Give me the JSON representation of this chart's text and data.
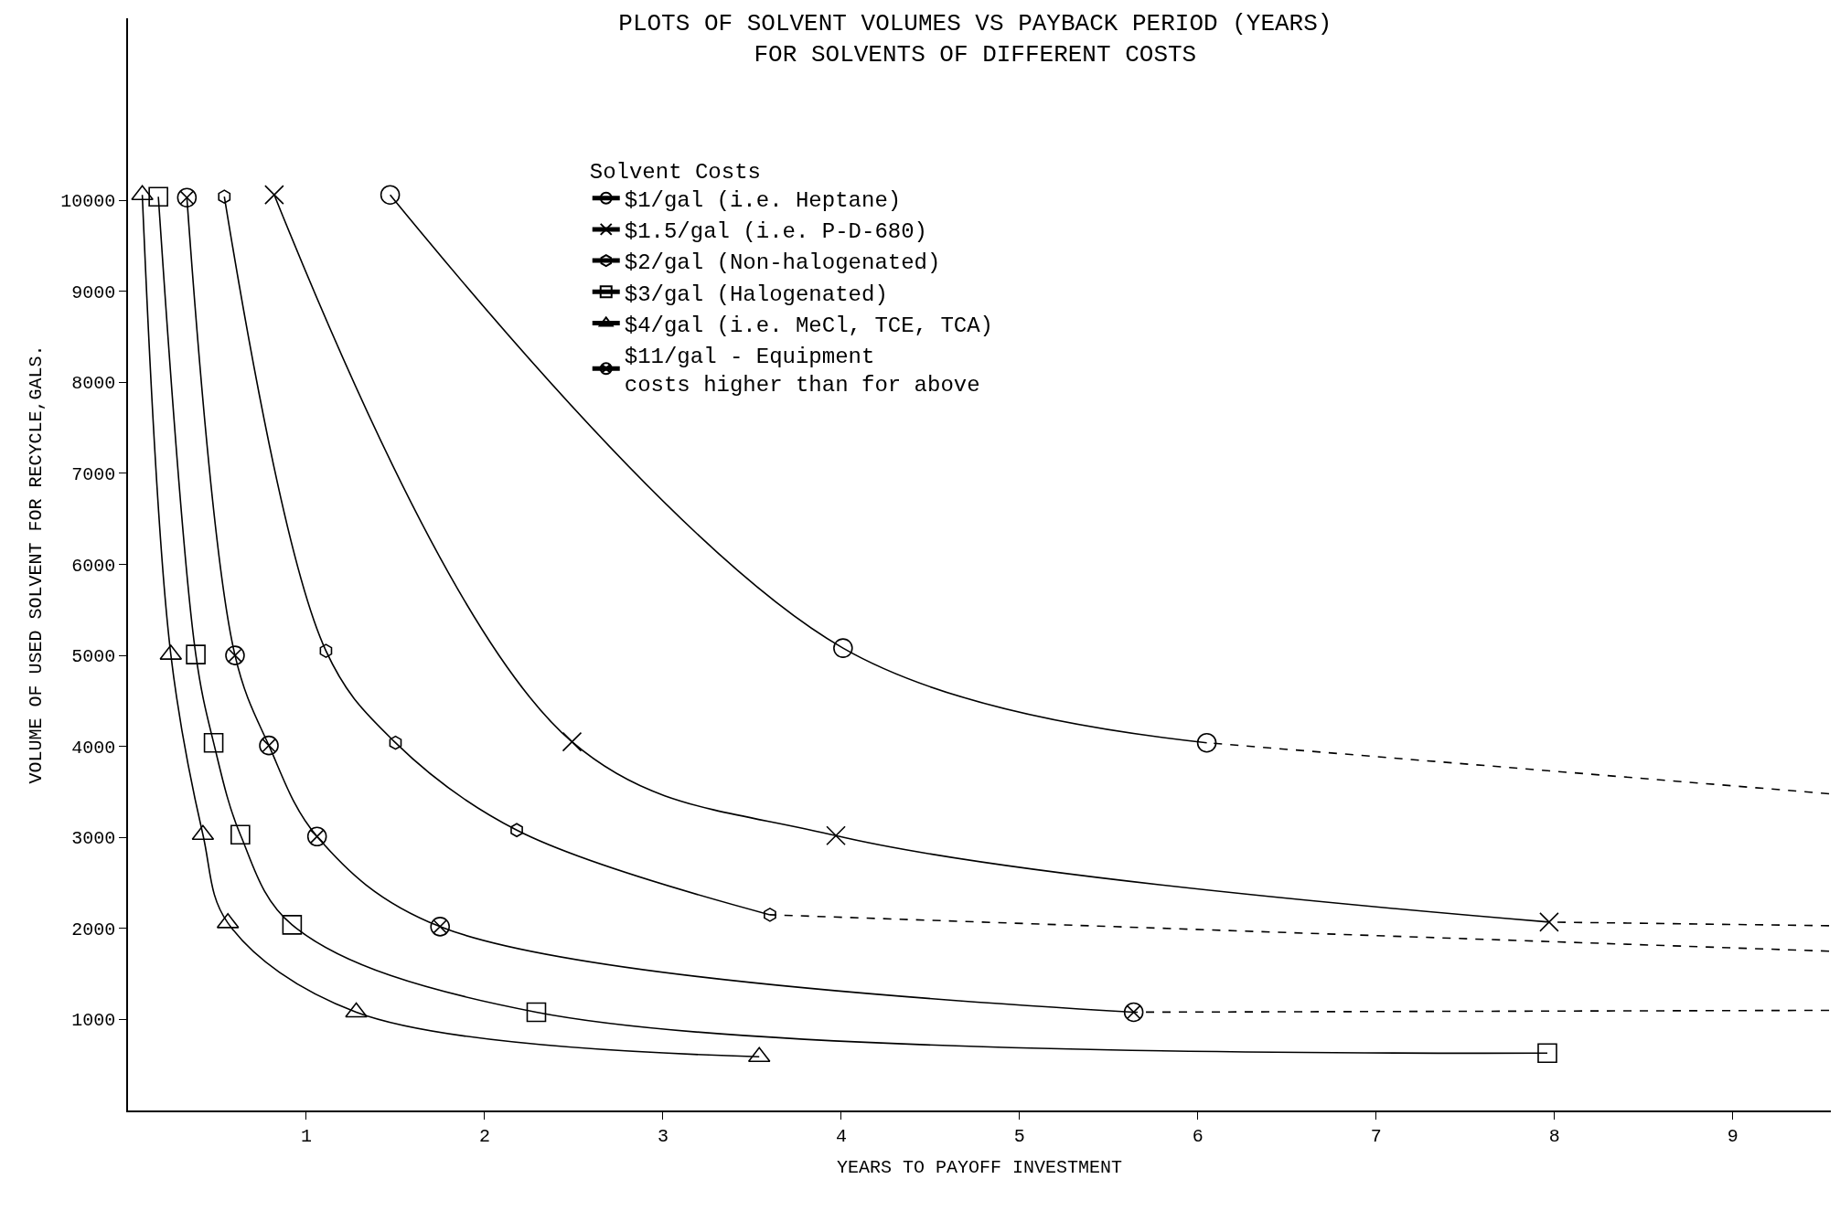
{
  "chart_data": {
    "type": "line",
    "title": "PLOTS OF SOLVENT VOLUMES VS PAYBACK PERIOD (YEARS)\nFOR SOLVENTS OF DIFFERENT COSTS",
    "xlabel": "YEARS TO PAYOFF INVESTMENT",
    "ylabel": "VOLUME OF USED SOLVENT FOR RECYCLE,GALS.",
    "legend_title": "Solvent Costs",
    "legend": "top",
    "series": [
      {
        "name": "$1/gal (i.e. Heptane)",
        "color": "#000000",
        "marker": "circle",
        "x": [
          1.47,
          4.01,
          6.05
        ],
        "values": [
          10060,
          5080,
          4040
        ]
      },
      {
        "name": "$1.5/gal (i.e. P-D-680)",
        "color": "#000000",
        "marker": "x",
        "x": [
          0.82,
          2.49,
          3.97,
          7.97
        ],
        "values": [
          10060,
          4050,
          3020,
          2070
        ]
      },
      {
        "name": "$2/gal (Non-halogenated)",
        "color": "#000000",
        "marker": "circle",
        "x": [
          0.54,
          1.11,
          1.5,
          2.18,
          3.6
        ],
        "values": [
          10040,
          5050,
          4040,
          3080,
          2150
        ]
      },
      {
        "name": "$3/gal (Halogenated)",
        "color": "#000000",
        "marker": "square",
        "x": [
          0.17,
          0.38,
          0.48,
          0.63,
          0.92,
          2.29,
          7.96
        ],
        "values": [
          10040,
          5010,
          4040,
          3030,
          2040,
          1080,
          630
        ]
      },
      {
        "name": "$4/gal (i.e. MeCl, TCE, TCA)",
        "color": "#000000",
        "marker": "triangle",
        "x": [
          0.08,
          0.24,
          0.42,
          0.56,
          1.28,
          3.54
        ],
        "values": [
          10060,
          5010,
          3030,
          2060,
          1080,
          590
        ]
      },
      {
        "name": "$11/gal - Equipment\ncosts higher than for above",
        "color": "#000000",
        "marker": "cross",
        "x": [
          0.33,
          0.6,
          0.79,
          1.06,
          1.75,
          5.64
        ],
        "values": [
          10030,
          5000,
          4010,
          3010,
          2020,
          1080
        ]
      },
      {
        "color": "#000000",
        "marker": "none",
        "line_style": "dashed",
        "x": [
          9.54,
          6.05
        ],
        "values": [
          3480,
          4040
        ]
      },
      {
        "color": "#000000",
        "marker": "none",
        "line_style": "dashed",
        "x": [
          9.54,
          7.97
        ],
        "values": [
          2030,
          2070
        ]
      },
      {
        "color": "#000000",
        "marker": "none",
        "line_style": "dashed",
        "x": [
          9.54,
          3.6
        ],
        "values": [
          1750,
          2150
        ]
      },
      {
        "color": "#000000",
        "marker": "none",
        "line_style": "dashed",
        "x": [
          9.54,
          5.64
        ],
        "values": [
          1100,
          1080
        ]
      }
    ],
    "xlim": [
      0,
      9.55
    ],
    "xticks": [
      1,
      2,
      3,
      4,
      5,
      6,
      7,
      8,
      9
    ],
    "ylim": [
      0,
      12000
    ],
    "yticks": [
      1000,
      2000,
      3000,
      4000,
      5000,
      6000,
      7000,
      8000,
      9000,
      10000
    ]
  }
}
